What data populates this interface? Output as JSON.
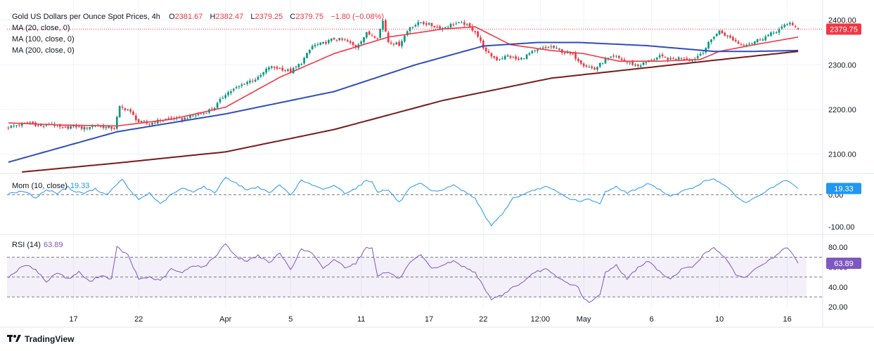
{
  "header": {
    "title": "Gold US Dollars per Ounce Spot Prices, 4h",
    "ohlc": [
      {
        "k": "O",
        "v": "2381.67"
      },
      {
        "k": "H",
        "v": "2382.47"
      },
      {
        "k": "L",
        "v": "2379.25"
      },
      {
        "k": "C",
        "v": "2379.75"
      }
    ],
    "change": "−1.80 (−0.08%)",
    "ma_labels": [
      "MA (20, close, 0)",
      "MA (100, close, 0)",
      "MA (200, close, 0)"
    ]
  },
  "indicators": {
    "mom": {
      "label": "Mom (10, close)",
      "value": "19.33"
    },
    "rsi": {
      "label": "RSI (14)",
      "value": "63.89"
    }
  },
  "logo": {
    "text": "TradingView"
  },
  "colors": {
    "bull": "#089981",
    "bear": "#f23645",
    "ma20": "#f23645",
    "ma100": "#2f4dbd",
    "ma200": "#7a1a1a",
    "mom": "#2196f3",
    "rsi": "#7e57c2",
    "rsi_band": "#7e57c2",
    "grid": "#f0f3fa",
    "axis_text": "#131722",
    "price_line": "#f23645"
  },
  "chart_data": [
    {
      "type": "candlestick",
      "title": "Gold US Dollars per Ounce Spot Prices, 4h",
      "y_ticks": [
        2100,
        2200,
        2300,
        2400
      ],
      "ylim": [
        2060,
        2445
      ],
      "last_price": "2379.75",
      "x_ticks": [
        {
          "i": 24,
          "label": "17"
        },
        {
          "i": 48,
          "label": "22"
        },
        {
          "i": 80,
          "label": "Apr"
        },
        {
          "i": 104,
          "label": "5"
        },
        {
          "i": 130,
          "label": "11"
        },
        {
          "i": 155,
          "label": "17"
        },
        {
          "i": 175,
          "label": "22"
        },
        {
          "i": 196,
          "label": "12:00"
        },
        {
          "i": 212,
          "label": "May"
        },
        {
          "i": 237,
          "label": "6"
        },
        {
          "i": 262,
          "label": "10"
        },
        {
          "i": 287,
          "label": "16"
        }
      ],
      "n_bars": 292,
      "close_anchors": [
        [
          0,
          2160
        ],
        [
          4,
          2166
        ],
        [
          8,
          2171
        ],
        [
          12,
          2162
        ],
        [
          16,
          2168
        ],
        [
          20,
          2157
        ],
        [
          24,
          2163
        ],
        [
          28,
          2158
        ],
        [
          32,
          2165
        ],
        [
          36,
          2160
        ],
        [
          39,
          2158
        ],
        [
          41,
          2205
        ],
        [
          44,
          2200
        ],
        [
          48,
          2172
        ],
        [
          52,
          2168
        ],
        [
          56,
          2176
        ],
        [
          60,
          2180
        ],
        [
          64,
          2178
        ],
        [
          68,
          2186
        ],
        [
          72,
          2192
        ],
        [
          76,
          2205
        ],
        [
          80,
          2235
        ],
        [
          84,
          2248
        ],
        [
          88,
          2262
        ],
        [
          92,
          2270
        ],
        [
          96,
          2295
        ],
        [
          100,
          2292
        ],
        [
          104,
          2285
        ],
        [
          108,
          2305
        ],
        [
          112,
          2342
        ],
        [
          116,
          2348
        ],
        [
          120,
          2358
        ],
        [
          124,
          2355
        ],
        [
          128,
          2340
        ],
        [
          132,
          2370
        ],
        [
          136,
          2362
        ],
        [
          138,
          2398
        ],
        [
          140,
          2352
        ],
        [
          144,
          2345
        ],
        [
          148,
          2385
        ],
        [
          152,
          2395
        ],
        [
          156,
          2388
        ],
        [
          160,
          2382
        ],
        [
          164,
          2392
        ],
        [
          168,
          2392
        ],
        [
          172,
          2375
        ],
        [
          176,
          2328
        ],
        [
          180,
          2312
        ],
        [
          184,
          2320
        ],
        [
          188,
          2310
        ],
        [
          192,
          2325
        ],
        [
          196,
          2335
        ],
        [
          200,
          2340
        ],
        [
          204,
          2330
        ],
        [
          208,
          2322
        ],
        [
          212,
          2300
        ],
        [
          216,
          2290
        ],
        [
          220,
          2312
        ],
        [
          224,
          2318
        ],
        [
          228,
          2305
        ],
        [
          232,
          2298
        ],
        [
          236,
          2308
        ],
        [
          240,
          2318
        ],
        [
          244,
          2312
        ],
        [
          248,
          2316
        ],
        [
          252,
          2310
        ],
        [
          256,
          2330
        ],
        [
          260,
          2365
        ],
        [
          262,
          2375
        ],
        [
          266,
          2360
        ],
        [
          270,
          2345
        ],
        [
          274,
          2350
        ],
        [
          278,
          2360
        ],
        [
          282,
          2372
        ],
        [
          285,
          2383
        ],
        [
          288,
          2395
        ],
        [
          291,
          2379.75
        ]
      ],
      "series": [
        {
          "name": "MA (20, close, 0)",
          "anchors": [
            [
              0,
              2170
            ],
            [
              20,
              2165
            ],
            [
              40,
              2163
            ],
            [
              60,
              2178
            ],
            [
              80,
              2205
            ],
            [
              100,
              2272
            ],
            [
              120,
              2325
            ],
            [
              140,
              2362
            ],
            [
              160,
              2380
            ],
            [
              172,
              2385
            ],
            [
              185,
              2345
            ],
            [
              200,
              2332
            ],
            [
              212,
              2325
            ],
            [
              225,
              2308
            ],
            [
              240,
              2308
            ],
            [
              255,
              2312
            ],
            [
              262,
              2330
            ],
            [
              275,
              2345
            ],
            [
              291,
              2362
            ]
          ]
        },
        {
          "name": "MA (100, close, 0)",
          "anchors": [
            [
              0,
              2082
            ],
            [
              40,
              2150
            ],
            [
              80,
              2190
            ],
            [
              120,
              2240
            ],
            [
              150,
              2300
            ],
            [
              175,
              2342
            ],
            [
              195,
              2350
            ],
            [
              210,
              2350
            ],
            [
              235,
              2343
            ],
            [
              260,
              2330
            ],
            [
              275,
              2330
            ],
            [
              291,
              2332
            ]
          ]
        },
        {
          "name": "MA (200, close, 0)",
          "anchors": [
            [
              5,
              2060
            ],
            [
              40,
              2080
            ],
            [
              80,
              2105
            ],
            [
              120,
              2155
            ],
            [
              160,
              2220
            ],
            [
              200,
              2270
            ],
            [
              230,
              2290
            ],
            [
              260,
              2310
            ],
            [
              291,
              2330
            ]
          ]
        }
      ]
    },
    {
      "type": "line",
      "title": "Mom (10, close)",
      "y_ticks": [
        0,
        -100
      ],
      "ylim": [
        -120,
        60
      ],
      "last_value": "19.33",
      "zero_line": 0,
      "anchors": [
        [
          0,
          5
        ],
        [
          6,
          10
        ],
        [
          10,
          -10
        ],
        [
          14,
          15
        ],
        [
          18,
          5
        ],
        [
          22,
          25
        ],
        [
          24,
          10
        ],
        [
          28,
          5
        ],
        [
          32,
          18
        ],
        [
          36,
          0
        ],
        [
          40,
          30
        ],
        [
          42,
          50
        ],
        [
          44,
          20
        ],
        [
          48,
          -15
        ],
        [
          52,
          5
        ],
        [
          56,
          -30
        ],
        [
          60,
          0
        ],
        [
          64,
          20
        ],
        [
          68,
          10
        ],
        [
          72,
          25
        ],
        [
          76,
          5
        ],
        [
          80,
          55
        ],
        [
          84,
          35
        ],
        [
          88,
          15
        ],
        [
          92,
          25
        ],
        [
          96,
          5
        ],
        [
          100,
          30
        ],
        [
          104,
          0
        ],
        [
          108,
          45
        ],
        [
          112,
          30
        ],
        [
          116,
          15
        ],
        [
          120,
          30
        ],
        [
          124,
          5
        ],
        [
          128,
          20
        ],
        [
          132,
          45
        ],
        [
          134,
          40
        ],
        [
          136,
          10
        ],
        [
          140,
          15
        ],
        [
          144,
          -25
        ],
        [
          148,
          20
        ],
        [
          152,
          35
        ],
        [
          156,
          10
        ],
        [
          160,
          15
        ],
        [
          164,
          30
        ],
        [
          168,
          10
        ],
        [
          172,
          -10
        ],
        [
          176,
          -75
        ],
        [
          178,
          -95
        ],
        [
          182,
          -60
        ],
        [
          186,
          -10
        ],
        [
          190,
          0
        ],
        [
          194,
          15
        ],
        [
          198,
          25
        ],
        [
          202,
          10
        ],
        [
          206,
          -10
        ],
        [
          210,
          -20
        ],
        [
          214,
          -15
        ],
        [
          218,
          -30
        ],
        [
          220,
          10
        ],
        [
          224,
          25
        ],
        [
          228,
          5
        ],
        [
          232,
          20
        ],
        [
          236,
          35
        ],
        [
          240,
          15
        ],
        [
          244,
          -5
        ],
        [
          248,
          10
        ],
        [
          252,
          20
        ],
        [
          256,
          40
        ],
        [
          260,
          50
        ],
        [
          264,
          30
        ],
        [
          268,
          -5
        ],
        [
          272,
          -25
        ],
        [
          276,
          -5
        ],
        [
          280,
          15
        ],
        [
          284,
          35
        ],
        [
          287,
          45
        ],
        [
          289,
          30
        ],
        [
          291,
          19.33
        ]
      ]
    },
    {
      "type": "line",
      "title": "RSI (14)",
      "y_ticks": [
        80,
        60,
        40,
        20
      ],
      "ylim": [
        18,
        90
      ],
      "band": [
        30,
        70
      ],
      "mid_line": 50,
      "last_value": "63.89",
      "anchors": [
        [
          0,
          50
        ],
        [
          6,
          62
        ],
        [
          10,
          58
        ],
        [
          14,
          45
        ],
        [
          18,
          55
        ],
        [
          22,
          48
        ],
        [
          26,
          55
        ],
        [
          30,
          45
        ],
        [
          34,
          52
        ],
        [
          38,
          48
        ],
        [
          40,
          80
        ],
        [
          44,
          72
        ],
        [
          48,
          48
        ],
        [
          52,
          50
        ],
        [
          56,
          46
        ],
        [
          60,
          58
        ],
        [
          64,
          54
        ],
        [
          68,
          62
        ],
        [
          72,
          60
        ],
        [
          76,
          70
        ],
        [
          80,
          84
        ],
        [
          84,
          70
        ],
        [
          88,
          66
        ],
        [
          92,
          72
        ],
        [
          96,
          64
        ],
        [
          100,
          74
        ],
        [
          104,
          58
        ],
        [
          108,
          78
        ],
        [
          112,
          74
        ],
        [
          116,
          58
        ],
        [
          120,
          68
        ],
        [
          124,
          60
        ],
        [
          128,
          64
        ],
        [
          132,
          80
        ],
        [
          134,
          79
        ],
        [
          136,
          52
        ],
        [
          140,
          55
        ],
        [
          144,
          48
        ],
        [
          148,
          64
        ],
        [
          152,
          72
        ],
        [
          156,
          58
        ],
        [
          160,
          62
        ],
        [
          164,
          66
        ],
        [
          168,
          60
        ],
        [
          172,
          55
        ],
        [
          176,
          35
        ],
        [
          178,
          28
        ],
        [
          182,
          32
        ],
        [
          186,
          40
        ],
        [
          190,
          45
        ],
        [
          194,
          55
        ],
        [
          198,
          58
        ],
        [
          202,
          50
        ],
        [
          206,
          44
        ],
        [
          210,
          40
        ],
        [
          212,
          28
        ],
        [
          214,
          24
        ],
        [
          218,
          32
        ],
        [
          220,
          55
        ],
        [
          224,
          62
        ],
        [
          228,
          48
        ],
        [
          232,
          60
        ],
        [
          236,
          66
        ],
        [
          240,
          55
        ],
        [
          244,
          48
        ],
        [
          248,
          58
        ],
        [
          252,
          60
        ],
        [
          256,
          72
        ],
        [
          260,
          80
        ],
        [
          264,
          70
        ],
        [
          268,
          52
        ],
        [
          272,
          50
        ],
        [
          276,
          60
        ],
        [
          280,
          66
        ],
        [
          284,
          74
        ],
        [
          287,
          80
        ],
        [
          289,
          72
        ],
        [
          291,
          63.89
        ]
      ]
    }
  ]
}
